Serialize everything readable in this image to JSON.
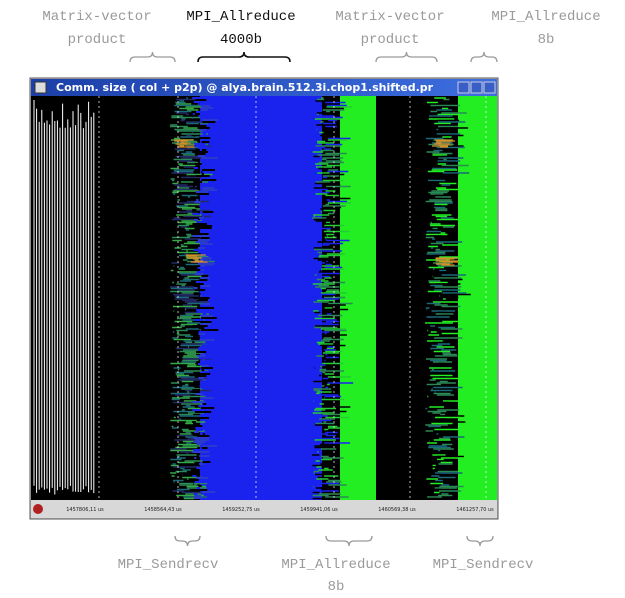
{
  "top_annotations": [
    {
      "lines": [
        "Matrix-vector",
        "product"
      ]
    },
    {
      "lines": [
        "MPI_Allreduce",
        "4000b"
      ]
    },
    {
      "lines": [
        "Matrix-vector",
        "product"
      ]
    },
    {
      "lines": [
        "MPI_Allreduce",
        "8b"
      ]
    }
  ],
  "window": {
    "title": "Comm. size ( col + p2p) @ alya.brain.512.3i.chop1.shifted.pr",
    "time_labels": [
      "1457806,11 us",
      "1458564,43 us",
      "1459252,75 us",
      "1459941,06 us",
      "1460569,38 us",
      "1461257,70 us"
    ]
  },
  "bottom_annotations": [
    {
      "lines": [
        "MPI_Sendrecv"
      ]
    },
    {
      "lines": [
        "MPI_Allreduce",
        "8b"
      ]
    },
    {
      "lines": [
        "MPI_Sendrecv"
      ]
    }
  ]
}
